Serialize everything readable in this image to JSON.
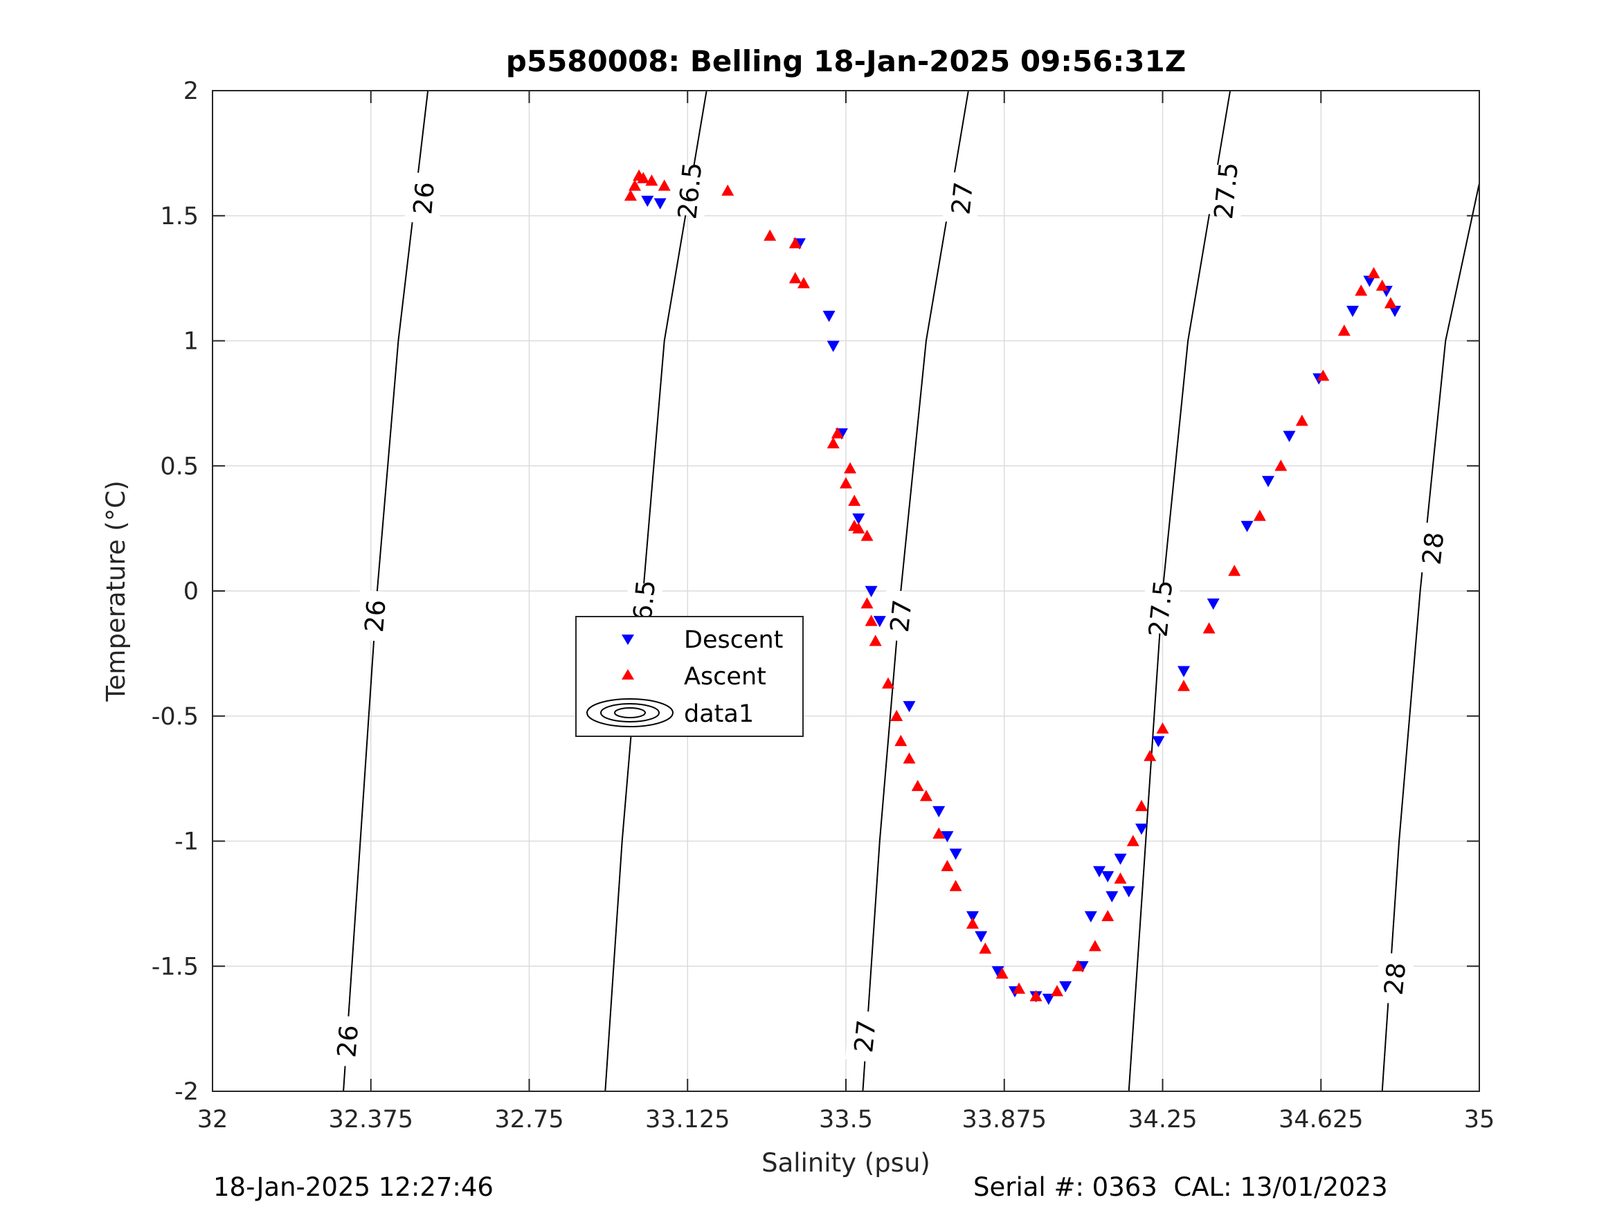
{
  "title": "p5580008: Belling 18-Jan-2025 09:56:31Z",
  "footer": {
    "timestamp": "18-Jan-2025 12:27:46",
    "serial": "Serial #: 0363  CAL: 13/01/2023"
  },
  "chart_data": {
    "type": "scatter",
    "title": "p5580008: Belling 18-Jan-2025 09:56:31Z",
    "xlabel": "Salinity (psu)",
    "ylabel": "Temperature (°C)",
    "xlim": [
      32,
      35
    ],
    "ylim": [
      -2,
      2
    ],
    "xticks": [
      32,
      32.375,
      32.75,
      33.125,
      33.5,
      33.875,
      34.25,
      34.625,
      35
    ],
    "xtick_labels": [
      "32",
      "32.375",
      "32.75",
      "33.125",
      "33.5",
      "33.875",
      "34.25",
      "34.625",
      "35"
    ],
    "yticks": [
      -2,
      -1.5,
      -1,
      -0.5,
      0,
      0.5,
      1,
      1.5,
      2
    ],
    "ytick_labels": [
      "-2",
      "-1.5",
      "-1",
      "-0.5",
      "0",
      "0.5",
      "1",
      "1.5",
      "2"
    ],
    "grid": true,
    "legend": {
      "placement": "center-left",
      "entries": [
        "Descent",
        "Ascent",
        "data1"
      ]
    },
    "colors": {
      "descent": "#0000ff",
      "ascent": "#ff0000",
      "contour": "#000000",
      "grid": "#dcdcdc"
    },
    "density_contours": [
      {
        "level": "26",
        "points": [
          [
            32.31,
            -2
          ],
          [
            32.35,
            -1
          ],
          [
            32.39,
            0
          ],
          [
            32.44,
            1
          ],
          [
            32.51,
            2
          ]
        ],
        "labels": [
          [
            32.32,
            -1.8
          ],
          [
            32.385,
            -0.1
          ],
          [
            32.5,
            1.57
          ]
        ]
      },
      {
        "level": "26.5",
        "points": [
          [
            32.93,
            -2
          ],
          [
            32.97,
            -1
          ],
          [
            33.02,
            0
          ],
          [
            33.07,
            1
          ],
          [
            33.17,
            2
          ]
        ],
        "labels": [
          [
            33.02,
            -0.07
          ],
          [
            33.13,
            1.6
          ]
        ]
      },
      {
        "level": "27",
        "points": [
          [
            33.54,
            -2
          ],
          [
            33.58,
            -1
          ],
          [
            33.63,
            0
          ],
          [
            33.69,
            1
          ],
          [
            33.79,
            2
          ]
        ],
        "labels": [
          [
            33.545,
            -1.78
          ],
          [
            33.63,
            -0.1
          ],
          [
            33.775,
            1.57
          ]
        ]
      },
      {
        "level": "27.5",
        "points": [
          [
            34.17,
            -2
          ],
          [
            34.21,
            -1
          ],
          [
            34.25,
            0
          ],
          [
            34.31,
            1
          ],
          [
            34.41,
            2
          ]
        ],
        "labels": [
          [
            34.245,
            -0.07
          ],
          [
            34.4,
            1.6
          ]
        ]
      },
      {
        "level": "28",
        "points": [
          [
            34.77,
            -2
          ],
          [
            34.81,
            -1
          ],
          [
            34.86,
            0
          ],
          [
            34.92,
            1
          ],
          [
            35.0,
            1.63
          ]
        ],
        "labels": [
          [
            34.8,
            -1.55
          ],
          [
            34.89,
            0.17
          ]
        ]
      }
    ],
    "series": [
      {
        "name": "Descent",
        "marker": "triangle-down",
        "color": "#0000ff",
        "points": [
          [
            33.03,
            1.56
          ],
          [
            33.06,
            1.55
          ],
          [
            33.39,
            1.39
          ],
          [
            33.46,
            1.1
          ],
          [
            33.47,
            0.98
          ],
          [
            33.49,
            0.63
          ],
          [
            33.53,
            0.29
          ],
          [
            33.56,
            0.0
          ],
          [
            33.58,
            -0.12
          ],
          [
            33.65,
            -0.46
          ],
          [
            33.72,
            -0.88
          ],
          [
            33.74,
            -0.98
          ],
          [
            33.76,
            -1.05
          ],
          [
            33.8,
            -1.3
          ],
          [
            33.82,
            -1.38
          ],
          [
            33.86,
            -1.52
          ],
          [
            33.9,
            -1.6
          ],
          [
            33.95,
            -1.62
          ],
          [
            33.98,
            -1.63
          ],
          [
            34.02,
            -1.58
          ],
          [
            34.06,
            -1.5
          ],
          [
            34.08,
            -1.3
          ],
          [
            34.1,
            -1.12
          ],
          [
            34.12,
            -1.14
          ],
          [
            34.13,
            -1.22
          ],
          [
            34.15,
            -1.07
          ],
          [
            34.17,
            -1.2
          ],
          [
            34.2,
            -0.95
          ],
          [
            34.24,
            -0.6
          ],
          [
            34.3,
            -0.32
          ],
          [
            34.37,
            -0.05
          ],
          [
            34.45,
            0.26
          ],
          [
            34.5,
            0.44
          ],
          [
            34.55,
            0.62
          ],
          [
            34.62,
            0.85
          ],
          [
            34.7,
            1.12
          ],
          [
            34.74,
            1.24
          ],
          [
            34.78,
            1.2
          ],
          [
            34.8,
            1.12
          ]
        ]
      },
      {
        "name": "Ascent",
        "marker": "triangle-up",
        "color": "#ff0000",
        "points": [
          [
            32.99,
            1.58
          ],
          [
            33.0,
            1.62
          ],
          [
            33.01,
            1.66
          ],
          [
            33.02,
            1.65
          ],
          [
            33.04,
            1.64
          ],
          [
            33.07,
            1.62
          ],
          [
            33.22,
            1.6
          ],
          [
            33.32,
            1.42
          ],
          [
            33.38,
            1.39
          ],
          [
            33.38,
            1.25
          ],
          [
            33.4,
            1.23
          ],
          [
            33.47,
            0.59
          ],
          [
            33.48,
            0.63
          ],
          [
            33.5,
            0.43
          ],
          [
            33.51,
            0.49
          ],
          [
            33.52,
            0.36
          ],
          [
            33.52,
            0.26
          ],
          [
            33.53,
            0.25
          ],
          [
            33.55,
            0.22
          ],
          [
            33.55,
            -0.05
          ],
          [
            33.56,
            -0.12
          ],
          [
            33.57,
            -0.2
          ],
          [
            33.6,
            -0.37
          ],
          [
            33.62,
            -0.5
          ],
          [
            33.63,
            -0.6
          ],
          [
            33.65,
            -0.67
          ],
          [
            33.67,
            -0.78
          ],
          [
            33.69,
            -0.82
          ],
          [
            33.72,
            -0.97
          ],
          [
            33.74,
            -1.1
          ],
          [
            33.76,
            -1.18
          ],
          [
            33.8,
            -1.33
          ],
          [
            33.83,
            -1.43
          ],
          [
            33.87,
            -1.53
          ],
          [
            33.91,
            -1.59
          ],
          [
            33.95,
            -1.62
          ],
          [
            34.0,
            -1.6
          ],
          [
            34.05,
            -1.5
          ],
          [
            34.09,
            -1.42
          ],
          [
            34.12,
            -1.3
          ],
          [
            34.15,
            -1.15
          ],
          [
            34.18,
            -1.0
          ],
          [
            34.2,
            -0.86
          ],
          [
            34.22,
            -0.66
          ],
          [
            34.25,
            -0.55
          ],
          [
            34.3,
            -0.38
          ],
          [
            34.36,
            -0.15
          ],
          [
            34.42,
            0.08
          ],
          [
            34.48,
            0.3
          ],
          [
            34.53,
            0.5
          ],
          [
            34.58,
            0.68
          ],
          [
            34.63,
            0.86
          ],
          [
            34.68,
            1.04
          ],
          [
            34.72,
            1.2
          ],
          [
            34.75,
            1.27
          ],
          [
            34.77,
            1.22
          ],
          [
            34.79,
            1.15
          ]
        ]
      }
    ]
  }
}
